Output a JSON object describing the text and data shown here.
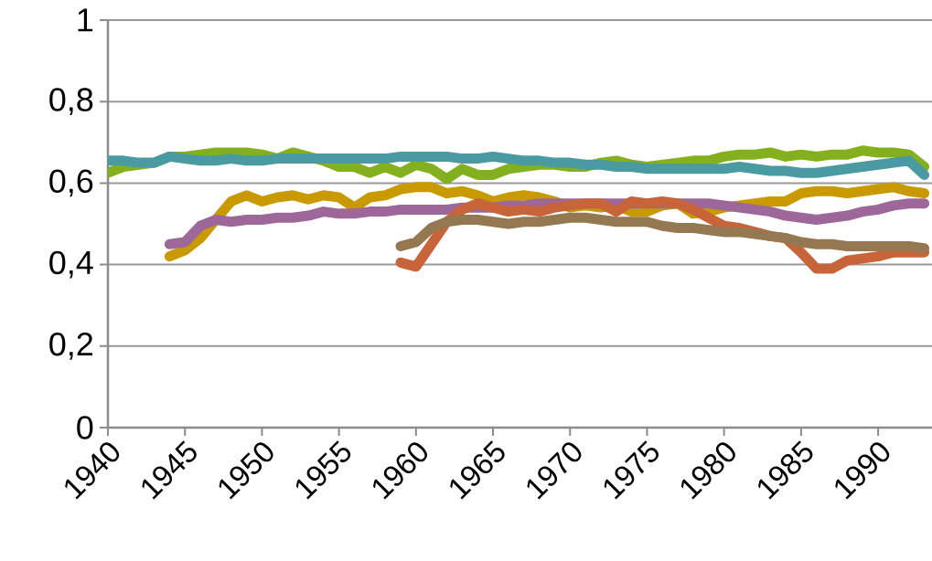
{
  "chart_data": {
    "type": "line",
    "x": [
      1940,
      1941,
      1942,
      1943,
      1944,
      1945,
      1946,
      1947,
      1948,
      1949,
      1950,
      1951,
      1952,
      1953,
      1954,
      1955,
      1956,
      1957,
      1958,
      1959,
      1960,
      1961,
      1962,
      1963,
      1964,
      1965,
      1966,
      1967,
      1968,
      1969,
      1970,
      1971,
      1972,
      1973,
      1974,
      1975,
      1976,
      1977,
      1978,
      1979,
      1980,
      1981,
      1982,
      1983,
      1984,
      1985,
      1986,
      1987,
      1988,
      1989,
      1990,
      1991,
      1992,
      1993
    ],
    "series": [
      {
        "color": "#84b01f",
        "values": [
          0.625,
          0.64,
          0.645,
          0.65,
          0.665,
          0.665,
          0.67,
          0.675,
          0.675,
          0.675,
          0.67,
          0.66,
          0.675,
          0.665,
          0.655,
          0.64,
          0.64,
          0.625,
          0.64,
          0.625,
          0.645,
          0.635,
          0.61,
          0.635,
          0.62,
          0.62,
          0.635,
          0.64,
          0.645,
          0.645,
          0.64,
          0.64,
          0.65,
          0.655,
          0.645,
          0.64,
          0.645,
          0.65,
          0.655,
          0.655,
          0.665,
          0.67,
          0.67,
          0.675,
          0.665,
          0.67,
          0.665,
          0.67,
          0.67,
          0.68,
          0.675,
          0.675,
          0.67,
          0.64
        ]
      },
      {
        "color": "#4a9aa2",
        "values": [
          0.655,
          0.655,
          0.65,
          0.65,
          0.665,
          0.66,
          0.655,
          0.655,
          0.66,
          0.655,
          0.655,
          0.66,
          0.66,
          0.66,
          0.66,
          0.66,
          0.66,
          0.66,
          0.66,
          0.665,
          0.665,
          0.665,
          0.665,
          0.66,
          0.66,
          0.665,
          0.66,
          0.655,
          0.655,
          0.65,
          0.65,
          0.645,
          0.645,
          0.64,
          0.64,
          0.635,
          0.635,
          0.635,
          0.635,
          0.635,
          0.635,
          0.64,
          0.635,
          0.63,
          0.63,
          0.625,
          0.625,
          0.63,
          0.635,
          0.64,
          0.645,
          0.65,
          0.655,
          0.62
        ]
      },
      {
        "color": "#c89a00",
        "values": [
          null,
          null,
          null,
          null,
          0.42,
          0.435,
          0.465,
          0.51,
          0.555,
          0.57,
          0.555,
          0.565,
          0.57,
          0.56,
          0.57,
          0.565,
          0.54,
          0.565,
          0.57,
          0.585,
          0.59,
          0.59,
          0.575,
          0.58,
          0.57,
          0.555,
          0.565,
          0.57,
          0.565,
          0.555,
          0.54,
          0.545,
          0.54,
          0.545,
          0.53,
          0.53,
          0.545,
          0.55,
          0.525,
          0.53,
          0.54,
          0.545,
          0.55,
          0.555,
          0.555,
          0.575,
          0.58,
          0.58,
          0.575,
          0.58,
          0.585,
          0.59,
          0.58,
          0.575
        ]
      },
      {
        "color": "#9e6799",
        "values": [
          null,
          null,
          null,
          null,
          0.45,
          0.455,
          0.495,
          0.51,
          0.505,
          0.51,
          0.51,
          0.515,
          0.515,
          0.52,
          0.53,
          0.525,
          0.525,
          0.53,
          0.53,
          0.535,
          0.535,
          0.535,
          0.535,
          0.54,
          0.54,
          0.54,
          0.545,
          0.545,
          0.55,
          0.55,
          0.55,
          0.55,
          0.55,
          0.55,
          0.55,
          0.55,
          0.55,
          0.55,
          0.55,
          0.55,
          0.545,
          0.54,
          0.535,
          0.53,
          0.52,
          0.515,
          0.51,
          0.515,
          0.52,
          0.53,
          0.535,
          0.545,
          0.55,
          0.55
        ]
      },
      {
        "color": "#c8643a",
        "values": [
          null,
          null,
          null,
          null,
          null,
          null,
          null,
          null,
          null,
          null,
          null,
          null,
          null,
          null,
          null,
          null,
          null,
          null,
          null,
          0.405,
          0.395,
          0.45,
          0.505,
          0.535,
          0.55,
          0.54,
          0.53,
          0.535,
          0.53,
          0.54,
          0.545,
          0.55,
          0.55,
          0.53,
          0.555,
          0.55,
          0.555,
          0.55,
          0.535,
          0.515,
          0.495,
          0.49,
          0.48,
          0.47,
          0.465,
          0.43,
          0.39,
          0.39,
          0.41,
          0.415,
          0.42,
          0.43,
          0.43,
          0.43
        ]
      },
      {
        "color": "#937852",
        "values": [
          null,
          null,
          null,
          null,
          null,
          null,
          null,
          null,
          null,
          null,
          null,
          null,
          null,
          null,
          null,
          null,
          null,
          null,
          null,
          0.445,
          0.455,
          0.49,
          0.505,
          0.51,
          0.51,
          0.505,
          0.5,
          0.505,
          0.505,
          0.51,
          0.515,
          0.515,
          0.51,
          0.505,
          0.505,
          0.505,
          0.495,
          0.49,
          0.49,
          0.485,
          0.48,
          0.48,
          0.475,
          0.47,
          0.465,
          0.455,
          0.45,
          0.45,
          0.445,
          0.445,
          0.445,
          0.445,
          0.445,
          0.44
        ]
      }
    ],
    "xlim": [
      1940,
      1993.5
    ],
    "ylim": [
      0,
      1
    ],
    "xticks": [
      1940,
      1945,
      1950,
      1955,
      1960,
      1965,
      1970,
      1975,
      1980,
      1985,
      1990
    ],
    "yticks": [
      0,
      {
        "value": 0.2,
        "label": "0,2"
      },
      {
        "value": 0.4,
        "label": "0,4"
      },
      {
        "value": 0.6,
        "label": "0,6"
      },
      {
        "value": 0.8,
        "label": "0,8"
      },
      1
    ],
    "grid": "y",
    "marker": "none",
    "line_style": "solid"
  }
}
